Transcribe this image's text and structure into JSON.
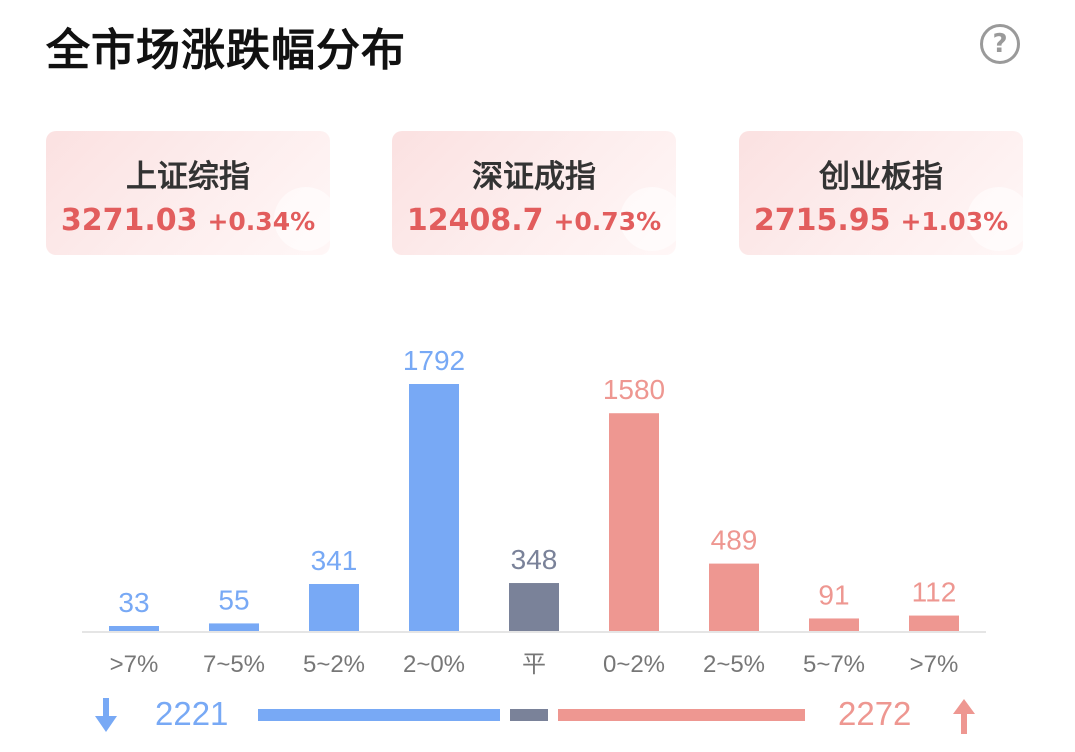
{
  "header": {
    "title": "全市场涨跌幅分布",
    "help_icon": "question-circle-icon"
  },
  "indices": [
    {
      "name": "上证综指",
      "value": "3271.03",
      "change": "+0.34%"
    },
    {
      "name": "深证成指",
      "value": "12408.7",
      "change": "+0.73%"
    },
    {
      "name": "创业板指",
      "value": "2715.95",
      "change": "+1.03%"
    }
  ],
  "colors": {
    "down": "#78a9f5",
    "flat": "#7a8299",
    "up": "#ee9791",
    "up_text": "#e25d5d"
  },
  "chart_data": {
    "type": "bar",
    "categories": [
      ">7%",
      "7~5%",
      "5~2%",
      "2~0%",
      "平",
      "0~2%",
      "2~5%",
      "5~7%",
      ">7%"
    ],
    "values": [
      33,
      55,
      341,
      1792,
      348,
      1580,
      489,
      91,
      112
    ],
    "groups": [
      "down",
      "down",
      "down",
      "down",
      "flat",
      "up",
      "up",
      "up",
      "up"
    ],
    "ylim": [
      0,
      1792
    ],
    "grid": false
  },
  "summary": {
    "down_total": "2221",
    "flat_total": 348,
    "up_total": "2272",
    "down_icon": "arrow-down-icon",
    "up_icon": "arrow-up-icon"
  }
}
